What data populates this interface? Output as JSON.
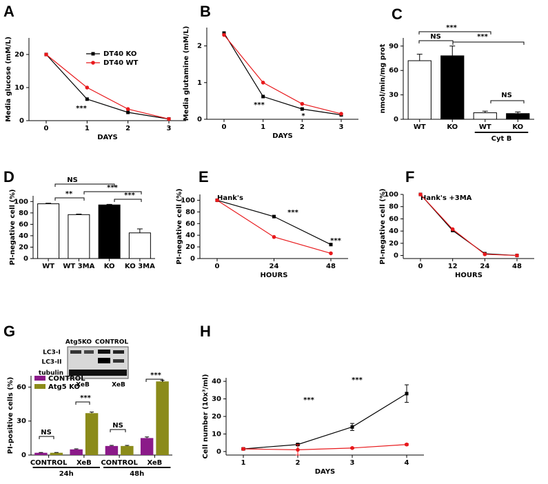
{
  "chart_data": [
    {
      "panel_label": "A",
      "type": "line",
      "categories": [
        "0",
        "1",
        "2",
        "3"
      ],
      "x_label": "DAYS",
      "y_label": "Media glucose (mM/L)",
      "ylim": [
        0,
        25
      ],
      "yticks": [
        0,
        10,
        20
      ],
      "legend": "upper-right",
      "series": [
        {
          "name": "DT40 KO",
          "color": "#000000",
          "marker": "square",
          "values": [
            20,
            6.5,
            2.5,
            0.5
          ]
        },
        {
          "name": "DT40 WT",
          "color": "#e8191c",
          "marker": "circle",
          "values": [
            20,
            10,
            3.5,
            0.5
          ]
        }
      ],
      "annotations": [
        "***"
      ]
    },
    {
      "panel_label": "B",
      "type": "line",
      "categories": [
        "0",
        "1",
        "2",
        "3"
      ],
      "x_label": "DAYS",
      "y_label": "Media glutamine (mM/L)",
      "ylim": [
        0,
        2.5
      ],
      "yticks": [
        0,
        1,
        2
      ],
      "series": [
        {
          "color": "#000000",
          "marker": "square",
          "values": [
            2.35,
            0.62,
            0.28,
            0.12
          ]
        },
        {
          "color": "#e8191c",
          "marker": "circle",
          "values": [
            2.3,
            1.0,
            0.42,
            0.15
          ]
        }
      ],
      "annotations": [
        "***",
        "*"
      ]
    },
    {
      "panel_label": "C",
      "type": "bar",
      "categories": [
        "WT",
        "KO",
        "WT",
        "KO"
      ],
      "group_label": "Cyt B",
      "y_label": "nmol/min/mg prot",
      "ylim": [
        0,
        100
      ],
      "yticks": [
        0,
        30,
        60,
        90
      ],
      "values": [
        72,
        78,
        8,
        7
      ],
      "errors": [
        8,
        12,
        2,
        2
      ],
      "colors": [
        "#ffffff",
        "#000000",
        "#ffffff",
        "#000000"
      ],
      "annotations": [
        "***",
        "NS",
        "***",
        "NS"
      ]
    },
    {
      "panel_label": "D",
      "type": "bar",
      "categories": [
        "WT",
        "WT 3MA",
        "KO",
        "KO 3MA"
      ],
      "y_label": "PI-negative cell (%)",
      "ylim": [
        0,
        110
      ],
      "yticks": [
        0,
        20,
        40,
        60,
        80,
        100
      ],
      "values": [
        96,
        77,
        94,
        45
      ],
      "errors": [
        1,
        1,
        1,
        7
      ],
      "colors": [
        "#ffffff",
        "#ffffff",
        "#000000",
        "#ffffff"
      ],
      "annotations": [
        "NS",
        "**",
        "***",
        "***"
      ]
    },
    {
      "panel_label": "E",
      "type": "line",
      "title": "Hank's",
      "categories": [
        "0",
        "24",
        "48"
      ],
      "x_label": "HOURS",
      "y_label": "PI-negative cell (%)",
      "ylim": [
        0,
        110
      ],
      "yticks": [
        0,
        20,
        40,
        60,
        80,
        100
      ],
      "series": [
        {
          "color": "#000000",
          "marker": "square",
          "values": [
            100,
            72,
            24
          ]
        },
        {
          "color": "#e8191c",
          "marker": "circle",
          "values": [
            100,
            37,
            9
          ]
        }
      ],
      "annotations": [
        "***",
        "***"
      ]
    },
    {
      "panel_label": "F",
      "type": "line",
      "title": "Hank's +3MA",
      "categories": [
        "0",
        "12",
        "24",
        "48"
      ],
      "x_label": "HOURS",
      "y_label": "PI-negative cell (%)",
      "ylim": [
        -5,
        100
      ],
      "yticks": [
        0,
        20,
        40,
        60,
        80,
        100
      ],
      "series": [
        {
          "color": "#000000",
          "marker": "square",
          "values": [
            100,
            41,
            3,
            0
          ]
        },
        {
          "color": "#e8191c",
          "marker": "circle",
          "values": [
            100,
            43,
            2,
            0
          ]
        }
      ],
      "annotations": []
    },
    {
      "panel_label": "G",
      "type": "grouped_bar",
      "blot_labels": [
        "Atg5KO",
        "CONTROL",
        "LC3-I",
        "LC3-II",
        "tubulin",
        "XeB",
        "XeB"
      ],
      "categories": [
        "CONTROL",
        "XeB",
        "CONTROL",
        "XeB"
      ],
      "groups": [
        "24h",
        "48h"
      ],
      "y_label": "PI-positive cells (%)",
      "ylim": [
        0,
        70
      ],
      "yticks": [
        0,
        30,
        60
      ],
      "legend": "upper-left",
      "series": [
        {
          "name": "CONTROL",
          "color": "#8b1a89",
          "values": [
            2,
            5,
            8,
            15
          ],
          "errors": [
            0.3,
            0.5,
            0.5,
            1
          ]
        },
        {
          "name": "Atg5 KO",
          "color": "#8b8b1a",
          "values": [
            2,
            37,
            8,
            65
          ],
          "errors": [
            0.3,
            1,
            0.5,
            1
          ]
        }
      ],
      "annotations": [
        "NS",
        "***",
        "NS",
        "***"
      ]
    },
    {
      "panel_label": "H",
      "type": "line",
      "categories": [
        "1",
        "2",
        "3",
        "4"
      ],
      "x_label": "DAYS",
      "y_label": "Cell number (10x³/ml)",
      "ylim": [
        -2,
        42
      ],
      "yticks": [
        0,
        10,
        20,
        30,
        40
      ],
      "series": [
        {
          "color": "#000000",
          "marker": "square",
          "values": [
            1.5,
            4,
            14,
            33
          ],
          "errors": [
            0.5,
            0.5,
            2,
            5
          ]
        },
        {
          "color": "#e8191c",
          "marker": "circle",
          "values": [
            1.5,
            1,
            2,
            4
          ],
          "errors": [
            0.3,
            3,
            0.3,
            0.5
          ]
        }
      ],
      "annotations": [
        "***",
        "***"
      ]
    }
  ]
}
